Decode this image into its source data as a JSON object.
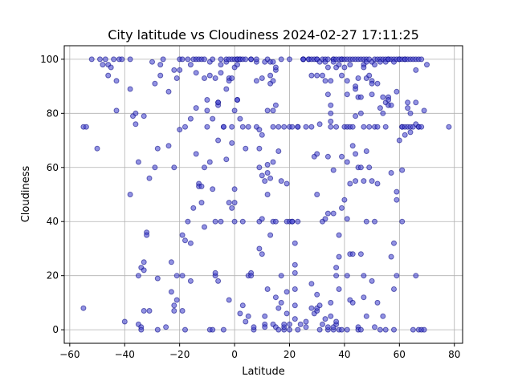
{
  "chart_data": {
    "type": "scatter",
    "title": "City latitude vs Cloudiness 2024-02-27 17:11:25",
    "xlabel": "Latitude",
    "ylabel": "Cloudiness",
    "xlim": [
      -62,
      83
    ],
    "ylim": [
      -5,
      105
    ],
    "xticks": [
      -60,
      -40,
      -20,
      0,
      20,
      40,
      60,
      80
    ],
    "yticks": [
      0,
      20,
      40,
      60,
      80,
      100
    ],
    "grid": true,
    "marker_color": "#4a4ad0",
    "marker_edge_color": "#000080",
    "points": [
      [
        -55,
        75
      ],
      [
        -54,
        75
      ],
      [
        -55,
        8
      ],
      [
        -52,
        100
      ],
      [
        -50,
        67
      ],
      [
        -49,
        100
      ],
      [
        -48,
        98
      ],
      [
        -47,
        100
      ],
      [
        -46,
        98
      ],
      [
        -46,
        94
      ],
      [
        -45,
        97
      ],
      [
        -44,
        100
      ],
      [
        -43,
        81
      ],
      [
        -43,
        92
      ],
      [
        -42,
        100
      ],
      [
        -41,
        100
      ],
      [
        -40,
        3
      ],
      [
        -38,
        100
      ],
      [
        -38,
        89
      ],
      [
        -38,
        50
      ],
      [
        -37,
        79
      ],
      [
        -36,
        76
      ],
      [
        -36,
        80
      ],
      [
        -35,
        62
      ],
      [
        -35,
        2
      ],
      [
        -35,
        20
      ],
      [
        -34,
        1
      ],
      [
        -34,
        23
      ],
      [
        -34,
        0
      ],
      [
        -33,
        79
      ],
      [
        -33,
        22
      ],
      [
        -33,
        25
      ],
      [
        -33,
        7
      ],
      [
        -32,
        36
      ],
      [
        -32,
        35
      ],
      [
        -31,
        56
      ],
      [
        -31,
        7
      ],
      [
        -30,
        99
      ],
      [
        -29,
        91
      ],
      [
        -29,
        60
      ],
      [
        -28,
        67
      ],
      [
        -28,
        19
      ],
      [
        -28,
        0
      ],
      [
        -27,
        94
      ],
      [
        -27,
        98
      ],
      [
        -26,
        100
      ],
      [
        -25,
        1
      ],
      [
        -24,
        68
      ],
      [
        -24,
        88
      ],
      [
        -23,
        25
      ],
      [
        -23,
        14
      ],
      [
        -22,
        9
      ],
      [
        -22,
        60
      ],
      [
        -22,
        96
      ],
      [
        -22,
        7
      ],
      [
        -21,
        93
      ],
      [
        -21,
        11
      ],
      [
        -21,
        20
      ],
      [
        -20,
        96
      ],
      [
        -20,
        74
      ],
      [
        -20,
        100
      ],
      [
        -19,
        100
      ],
      [
        -19,
        20
      ],
      [
        -19,
        7
      ],
      [
        -19,
        35
      ],
      [
        -18,
        75
      ],
      [
        -18,
        33
      ],
      [
        -18,
        0
      ],
      [
        -17,
        40
      ],
      [
        -17,
        100
      ],
      [
        -16,
        18
      ],
      [
        -16,
        98
      ],
      [
        -16,
        78
      ],
      [
        -16,
        32
      ],
      [
        -15,
        100
      ],
      [
        -15,
        45
      ],
      [
        -14,
        82
      ],
      [
        -14,
        65
      ],
      [
        -14,
        100
      ],
      [
        -14,
        95
      ],
      [
        -13,
        54
      ],
      [
        -13,
        53
      ],
      [
        -13,
        100
      ],
      [
        -12,
        53
      ],
      [
        -12,
        47
      ],
      [
        -12,
        100
      ],
      [
        -11,
        100
      ],
      [
        -11,
        93
      ],
      [
        -11,
        60
      ],
      [
        -11,
        38
      ],
      [
        -10,
        85
      ],
      [
        -10,
        81
      ],
      [
        -10,
        75
      ],
      [
        -9,
        94
      ],
      [
        -9,
        99
      ],
      [
        -9,
        62
      ],
      [
        -9,
        0
      ],
      [
        -8,
        0
      ],
      [
        -8,
        100
      ],
      [
        -8,
        78
      ],
      [
        -8,
        52
      ],
      [
        -7,
        20
      ],
      [
        -7,
        40
      ],
      [
        -7,
        21
      ],
      [
        -7,
        93
      ],
      [
        -6,
        84
      ],
      [
        -6,
        83
      ],
      [
        -6,
        84
      ],
      [
        -6,
        70
      ],
      [
        -6,
        18
      ],
      [
        -5,
        100
      ],
      [
        -5,
        95
      ],
      [
        -5,
        40
      ],
      [
        -5,
        98
      ],
      [
        -4,
        75
      ],
      [
        -4,
        75
      ],
      [
        -4,
        0
      ],
      [
        -3,
        99
      ],
      [
        -3,
        63
      ],
      [
        -3,
        100
      ],
      [
        -3,
        89
      ],
      [
        -2,
        93
      ],
      [
        -2,
        92
      ],
      [
        -2,
        11
      ],
      [
        -2,
        100
      ],
      [
        -2,
        47
      ],
      [
        -1,
        45
      ],
      [
        -1,
        93
      ],
      [
        -1,
        69
      ],
      [
        -1,
        100
      ],
      [
        -1,
        75
      ],
      [
        0,
        81
      ],
      [
        0,
        97
      ],
      [
        0,
        100
      ],
      [
        0,
        52
      ],
      [
        0,
        47
      ],
      [
        0,
        40
      ],
      [
        1,
        98
      ],
      [
        1,
        100
      ],
      [
        1,
        85
      ],
      [
        1,
        85
      ],
      [
        1,
        100
      ],
      [
        2,
        100
      ],
      [
        2,
        78
      ],
      [
        2,
        6
      ],
      [
        2,
        100
      ],
      [
        3,
        75
      ],
      [
        3,
        100
      ],
      [
        3,
        40
      ],
      [
        3,
        9
      ],
      [
        4,
        100
      ],
      [
        4,
        67
      ],
      [
        4,
        3
      ],
      [
        5,
        75
      ],
      [
        5,
        20
      ],
      [
        5,
        5
      ],
      [
        6,
        100
      ],
      [
        6,
        100
      ],
      [
        6,
        21
      ],
      [
        6,
        20
      ],
      [
        7,
        0
      ],
      [
        7,
        1
      ],
      [
        8,
        99
      ],
      [
        8,
        92
      ],
      [
        8,
        75
      ],
      [
        8,
        100
      ],
      [
        9,
        74
      ],
      [
        9,
        60
      ],
      [
        9,
        40
      ],
      [
        9,
        30
      ],
      [
        9,
        67
      ],
      [
        10,
        57
      ],
      [
        10,
        28
      ],
      [
        10,
        93
      ],
      [
        10,
        41
      ],
      [
        10,
        72
      ],
      [
        11,
        55
      ],
      [
        11,
        5
      ],
      [
        11,
        99
      ],
      [
        11,
        2
      ],
      [
        11,
        1
      ],
      [
        12,
        58
      ],
      [
        12,
        50
      ],
      [
        12,
        61
      ],
      [
        12,
        81
      ],
      [
        12,
        15
      ],
      [
        12,
        100
      ],
      [
        13,
        94
      ],
      [
        13,
        56
      ],
      [
        13,
        35
      ],
      [
        13,
        91
      ],
      [
        13,
        99
      ],
      [
        14,
        99
      ],
      [
        14,
        92
      ],
      [
        14,
        75
      ],
      [
        14,
        62
      ],
      [
        14,
        40
      ],
      [
        14,
        81
      ],
      [
        14,
        2
      ],
      [
        15,
        96
      ],
      [
        15,
        97
      ],
      [
        15,
        83
      ],
      [
        15,
        1
      ],
      [
        15,
        12
      ],
      [
        15,
        40
      ],
      [
        16,
        8
      ],
      [
        16,
        66
      ],
      [
        16,
        75
      ],
      [
        16,
        0
      ],
      [
        17,
        55
      ],
      [
        17,
        100
      ],
      [
        17,
        20
      ],
      [
        17,
        10
      ],
      [
        18,
        75
      ],
      [
        18,
        0
      ],
      [
        18,
        1
      ],
      [
        18,
        2
      ],
      [
        19,
        54
      ],
      [
        19,
        40
      ],
      [
        19,
        14
      ],
      [
        19,
        6
      ],
      [
        20,
        100
      ],
      [
        20,
        75
      ],
      [
        20,
        40
      ],
      [
        20,
        2
      ],
      [
        20,
        0
      ],
      [
        21,
        75
      ],
      [
        21,
        40
      ],
      [
        21,
        40
      ],
      [
        22,
        32
      ],
      [
        22,
        24
      ],
      [
        22,
        21
      ],
      [
        22,
        15
      ],
      [
        22,
        9
      ],
      [
        22,
        4
      ],
      [
        23,
        75
      ],
      [
        23,
        40
      ],
      [
        23,
        75
      ],
      [
        23,
        0
      ],
      [
        24,
        2
      ],
      [
        25,
        100
      ],
      [
        25,
        100
      ],
      [
        25,
        100
      ],
      [
        26,
        75
      ],
      [
        26,
        3
      ],
      [
        26,
        1
      ],
      [
        27,
        100
      ],
      [
        27,
        100
      ],
      [
        28,
        100
      ],
      [
        28,
        94
      ],
      [
        28,
        8
      ],
      [
        28,
        17
      ],
      [
        28,
        75
      ],
      [
        29,
        64
      ],
      [
        29,
        100
      ],
      [
        29,
        6
      ],
      [
        30,
        100
      ],
      [
        30,
        100
      ],
      [
        30,
        94
      ],
      [
        30,
        65
      ],
      [
        30,
        50
      ],
      [
        30,
        13
      ],
      [
        30,
        7
      ],
      [
        30,
        8
      ],
      [
        31,
        99
      ],
      [
        31,
        76
      ],
      [
        31,
        0
      ],
      [
        31,
        9
      ],
      [
        32,
        100
      ],
      [
        32,
        94
      ],
      [
        32,
        40
      ],
      [
        32,
        2
      ],
      [
        33,
        100
      ],
      [
        33,
        99
      ],
      [
        33,
        92
      ],
      [
        33,
        41
      ],
      [
        33,
        4
      ],
      [
        34,
        100
      ],
      [
        34,
        97
      ],
      [
        34,
        87
      ],
      [
        34,
        64
      ],
      [
        34,
        43
      ],
      [
        34,
        0
      ],
      [
        34,
        1
      ],
      [
        35,
        92
      ],
      [
        35,
        83
      ],
      [
        35,
        80
      ],
      [
        35,
        77
      ],
      [
        35,
        75
      ],
      [
        35,
        10
      ],
      [
        35,
        5
      ],
      [
        36,
        100
      ],
      [
        36,
        100
      ],
      [
        36,
        99
      ],
      [
        36,
        59
      ],
      [
        36,
        43
      ],
      [
        36,
        0
      ],
      [
        36,
        1
      ],
      [
        37,
        100
      ],
      [
        37,
        97
      ],
      [
        37,
        75
      ],
      [
        37,
        23
      ],
      [
        37,
        20
      ],
      [
        37,
        2
      ],
      [
        37,
        3
      ],
      [
        38,
        100
      ],
      [
        38,
        98
      ],
      [
        38,
        35
      ],
      [
        38,
        27
      ],
      [
        38,
        15
      ],
      [
        38,
        0
      ],
      [
        39,
        100
      ],
      [
        39,
        100
      ],
      [
        39,
        94
      ],
      [
        39,
        64
      ],
      [
        39,
        45
      ],
      [
        39,
        0
      ],
      [
        40,
        100
      ],
      [
        40,
        97
      ],
      [
        40,
        48
      ],
      [
        40,
        75
      ],
      [
        41,
        100
      ],
      [
        41,
        92
      ],
      [
        41,
        87
      ],
      [
        41,
        75
      ],
      [
        41,
        62
      ],
      [
        41,
        41
      ],
      [
        41,
        20
      ],
      [
        41,
        0
      ],
      [
        42,
        100
      ],
      [
        42,
        98
      ],
      [
        42,
        75
      ],
      [
        42,
        54
      ],
      [
        42,
        28
      ],
      [
        42,
        11
      ],
      [
        43,
        100
      ],
      [
        43,
        75
      ],
      [
        43,
        68
      ],
      [
        43,
        28
      ],
      [
        43,
        10
      ],
      [
        44,
        100
      ],
      [
        44,
        90
      ],
      [
        44,
        65
      ],
      [
        44,
        89
      ],
      [
        44,
        79
      ],
      [
        44,
        55
      ],
      [
        45,
        100
      ],
      [
        45,
        93
      ],
      [
        45,
        86
      ],
      [
        45,
        60
      ],
      [
        45,
        1
      ],
      [
        45,
        0
      ],
      [
        46,
        100
      ],
      [
        46,
        86
      ],
      [
        46,
        80
      ],
      [
        46,
        60
      ],
      [
        46,
        28
      ],
      [
        46,
        0
      ],
      [
        47,
        100
      ],
      [
        47,
        98
      ],
      [
        47,
        97
      ],
      [
        47,
        75
      ],
      [
        47,
        55
      ],
      [
        47,
        12
      ],
      [
        47,
        20
      ],
      [
        48,
        100
      ],
      [
        48,
        99
      ],
      [
        48,
        93
      ],
      [
        48,
        66
      ],
      [
        48,
        40
      ],
      [
        48,
        5
      ],
      [
        49,
        100
      ],
      [
        49,
        94
      ],
      [
        49,
        75
      ],
      [
        49,
        60
      ],
      [
        50,
        99
      ],
      [
        50,
        92
      ],
      [
        50,
        91
      ],
      [
        50,
        87
      ],
      [
        50,
        55
      ],
      [
        50,
        18
      ],
      [
        51,
        100
      ],
      [
        51,
        98
      ],
      [
        51,
        75
      ],
      [
        51,
        40
      ],
      [
        51,
        1
      ],
      [
        52,
        100
      ],
      [
        52,
        91
      ],
      [
        52,
        75
      ],
      [
        52,
        54
      ],
      [
        52,
        10
      ],
      [
        53,
        100
      ],
      [
        53,
        99
      ],
      [
        53,
        82
      ],
      [
        53,
        0
      ],
      [
        54,
        100
      ],
      [
        54,
        86
      ],
      [
        54,
        80
      ],
      [
        54,
        5
      ],
      [
        55,
        100
      ],
      [
        55,
        99
      ],
      [
        55,
        84
      ],
      [
        55,
        75
      ],
      [
        55,
        0
      ],
      [
        56,
        100
      ],
      [
        56,
        100
      ],
      [
        56,
        86
      ],
      [
        56,
        85
      ],
      [
        56,
        83
      ],
      [
        57,
        100
      ],
      [
        57,
        83
      ],
      [
        57,
        58
      ],
      [
        57,
        27
      ],
      [
        58,
        100
      ],
      [
        58,
        99
      ],
      [
        58,
        32
      ],
      [
        58,
        15
      ],
      [
        58,
        0
      ],
      [
        59,
        100
      ],
      [
        59,
        88
      ],
      [
        59,
        51
      ],
      [
        59,
        48
      ],
      [
        59,
        20
      ],
      [
        60,
        100
      ],
      [
        60,
        100
      ],
      [
        60,
        70
      ],
      [
        61,
        100
      ],
      [
        61,
        75
      ],
      [
        61,
        75
      ],
      [
        61,
        59
      ],
      [
        61,
        40
      ],
      [
        62,
        100
      ],
      [
        62,
        100
      ],
      [
        62,
        75
      ],
      [
        62,
        72
      ],
      [
        63,
        100
      ],
      [
        63,
        82
      ],
      [
        63,
        84
      ],
      [
        63,
        75
      ],
      [
        64,
        100
      ],
      [
        64,
        80
      ],
      [
        64,
        75
      ],
      [
        64,
        73
      ],
      [
        65,
        100
      ],
      [
        65,
        75
      ],
      [
        65,
        0
      ],
      [
        66,
        100
      ],
      [
        66,
        96
      ],
      [
        66,
        84
      ],
      [
        66,
        76
      ],
      [
        66,
        20
      ],
      [
        67,
        100
      ],
      [
        67,
        75
      ],
      [
        67,
        75
      ],
      [
        67,
        0
      ],
      [
        68,
        100
      ],
      [
        68,
        75
      ],
      [
        68,
        0
      ],
      [
        69,
        81
      ],
      [
        69,
        0
      ],
      [
        70,
        98
      ],
      [
        78,
        75
      ]
    ]
  }
}
